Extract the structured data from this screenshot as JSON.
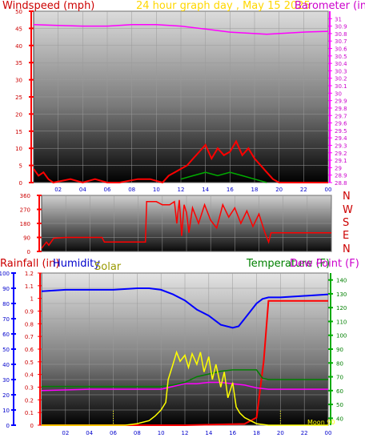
{
  "header": {
    "windspeed_label": "Windspeed (mph)",
    "title": "24 hour graph day , May 15 2025",
    "barometer_label": "Barometer (in)"
  },
  "compass": [
    "N",
    "W",
    "S",
    "E",
    "N"
  ],
  "lower_labels": {
    "rainfall": "Rainfall (in)",
    "humidity": "Humidity",
    "solar": "Solar",
    "temperature": "Temperature (F)",
    "dewpoint": "Dew Point (F)"
  },
  "moon_label": "Moon 90",
  "colors": {
    "windspeed": "#ff0000",
    "gust": "#ff0000",
    "barometer": "#ff00ff",
    "wind_dir": "#ff0000",
    "rain": "#ff0000",
    "humidity": "#0000ff",
    "solar": "#ffff00",
    "temperature": "#ff00ff",
    "dewpoint": "#008000",
    "title": "#ffd700"
  },
  "chart_data": [
    {
      "type": "area",
      "name": "wind-barometer",
      "x_ticks": [
        "02",
        "04",
        "06",
        "08",
        "10",
        "12",
        "14",
        "16",
        "18",
        "20",
        "22",
        "00"
      ],
      "y_left": {
        "label": "Windspeed (mph)",
        "ylim": [
          0,
          50
        ],
        "ticks": [
          0,
          5,
          10,
          15,
          20,
          25,
          30,
          35,
          40,
          45,
          50
        ]
      },
      "y_right": {
        "label": "Barometer (in)",
        "ylim": [
          28.8,
          31.1
        ],
        "ticks": [
          "28.8",
          "28.9",
          "29",
          "29.1",
          "29.2",
          "29.3",
          "29.4",
          "29.5",
          "29.6",
          "29.7",
          "29.8",
          "29.9",
          "30",
          "30.1",
          "30.2",
          "30.3",
          "30.4",
          "30.5",
          "30.6",
          "30.7",
          "30.8",
          "30.9",
          "31"
        ]
      },
      "series": [
        {
          "name": "Barometer",
          "axis": "right",
          "points": [
            [
              0,
              30.92
            ],
            [
              2,
              30.91
            ],
            [
              4,
              30.9
            ],
            [
              6,
              30.9
            ],
            [
              8,
              30.92
            ],
            [
              10,
              30.92
            ],
            [
              12,
              30.9
            ],
            [
              14,
              30.86
            ],
            [
              16,
              30.82
            ],
            [
              18,
              30.8
            ],
            [
              19,
              30.79
            ],
            [
              20,
              30.8
            ],
            [
              22,
              30.82
            ],
            [
              24,
              30.83
            ]
          ]
        },
        {
          "name": "Windspeed",
          "axis": "left",
          "points": [
            [
              0,
              4
            ],
            [
              0.4,
              2
            ],
            [
              0.8,
              3
            ],
            [
              1.2,
              1
            ],
            [
              1.6,
              0
            ],
            [
              3,
              1
            ],
            [
              4,
              0
            ],
            [
              5,
              1
            ],
            [
              6,
              0
            ],
            [
              7,
              0
            ],
            [
              8.5,
              1
            ],
            [
              9.5,
              1
            ],
            [
              10.5,
              0
            ],
            [
              11,
              2
            ],
            [
              11.5,
              3
            ],
            [
              12,
              4
            ],
            [
              12.5,
              5
            ],
            [
              13,
              7
            ],
            [
              13.5,
              9
            ],
            [
              14,
              11
            ],
            [
              14.5,
              7
            ],
            [
              15,
              10
            ],
            [
              15.5,
              8
            ],
            [
              16,
              9
            ],
            [
              16.5,
              12
            ],
            [
              17,
              8
            ],
            [
              17.5,
              10
            ],
            [
              18,
              7
            ],
            [
              18.5,
              5
            ],
            [
              19,
              3
            ],
            [
              19.5,
              1
            ],
            [
              20,
              0
            ],
            [
              24,
              0
            ]
          ]
        },
        {
          "name": "Gust",
          "axis": "left",
          "points": [
            [
              12,
              1
            ],
            [
              13,
              2
            ],
            [
              14,
              3
            ],
            [
              15,
              2
            ],
            [
              16,
              3
            ],
            [
              17,
              2
            ],
            [
              18,
              1
            ],
            [
              19,
              0
            ]
          ]
        }
      ]
    },
    {
      "type": "line",
      "name": "wind-direction",
      "x_ticks": [
        "02",
        "04",
        "06",
        "08",
        "10",
        "12",
        "14",
        "16",
        "18",
        "20",
        "22",
        "00"
      ],
      "ylim": [
        0,
        360
      ],
      "y_ticks": [
        0,
        90,
        180,
        270,
        360
      ],
      "series": [
        {
          "name": "Direction",
          "points": [
            [
              0,
              20
            ],
            [
              0.4,
              60
            ],
            [
              0.6,
              40
            ],
            [
              1,
              85
            ],
            [
              2,
              90
            ],
            [
              4,
              90
            ],
            [
              5,
              90
            ],
            [
              5.2,
              60
            ],
            [
              7,
              60
            ],
            [
              8.6,
              60
            ],
            [
              8.7,
              320
            ],
            [
              9.5,
              320
            ],
            [
              10,
              300
            ],
            [
              10.5,
              300
            ],
            [
              10.6,
              300
            ],
            [
              11,
              320
            ],
            [
              11.2,
              180
            ],
            [
              11.4,
              330
            ],
            [
              11.6,
              100
            ],
            [
              11.8,
              300
            ],
            [
              12,
              250
            ],
            [
              12.2,
              120
            ],
            [
              12.5,
              280
            ],
            [
              13,
              180
            ],
            [
              13.5,
              300
            ],
            [
              14,
              200
            ],
            [
              14.5,
              150
            ],
            [
              15,
              300
            ],
            [
              15.5,
              220
            ],
            [
              16,
              280
            ],
            [
              16.5,
              180
            ],
            [
              17,
              260
            ],
            [
              17.5,
              160
            ],
            [
              18,
              240
            ],
            [
              18.5,
              120
            ],
            [
              18.8,
              60
            ],
            [
              19,
              120
            ],
            [
              19.5,
              120
            ],
            [
              24,
              120
            ]
          ]
        }
      ]
    },
    {
      "type": "line",
      "name": "rain-humidity-temperature",
      "x_ticks": [
        "02",
        "04",
        "06",
        "08",
        "10",
        "12",
        "14",
        "16",
        "18",
        "20",
        "22",
        "00"
      ],
      "y_rain": {
        "label": "Rainfall (in)",
        "ylim": [
          0,
          1.2
        ],
        "ticks": [
          "0",
          "0.1",
          "0.2",
          "0.3",
          "0.4",
          "0.5",
          "0.6",
          "0.7",
          "0.8",
          "0.9",
          "1",
          "1.1",
          "1.2"
        ]
      },
      "y_humidity": {
        "label": "Humidity",
        "ylim": [
          0,
          100
        ],
        "ticks": [
          0,
          10,
          20,
          30,
          40,
          50,
          60,
          70,
          80,
          90,
          100
        ]
      },
      "y_temp": {
        "label": "Temperature (F)",
        "ylim": [
          35,
          145
        ],
        "ticks": [
          40,
          50,
          60,
          70,
          80,
          90,
          100,
          110,
          120,
          130,
          140
        ]
      },
      "series": [
        {
          "name": "Humidity",
          "axis": "humidity",
          "points": [
            [
              0,
              88
            ],
            [
              2,
              89
            ],
            [
              4,
              89
            ],
            [
              6,
              89
            ],
            [
              8,
              90
            ],
            [
              9,
              90
            ],
            [
              10,
              89
            ],
            [
              11,
              86
            ],
            [
              12,
              82
            ],
            [
              13,
              76
            ],
            [
              14,
              72
            ],
            [
              15,
              66
            ],
            [
              16,
              64
            ],
            [
              16.5,
              65
            ],
            [
              17,
              70
            ],
            [
              18,
              80
            ],
            [
              18.5,
              83
            ],
            [
              19,
              84
            ],
            [
              20,
              84
            ],
            [
              22,
              85
            ],
            [
              24,
              86
            ]
          ]
        },
        {
          "name": "Rainfall",
          "axis": "rain",
          "points": [
            [
              0,
              0
            ],
            [
              12,
              0
            ],
            [
              17,
              0.01
            ],
            [
              18,
              0.06
            ],
            [
              18.6,
              0.5
            ],
            [
              19,
              0.98
            ],
            [
              20,
              0.98
            ],
            [
              24,
              0.98
            ]
          ]
        },
        {
          "name": "Temperature",
          "axis": "temp",
          "points": [
            [
              0,
              60
            ],
            [
              4,
              61
            ],
            [
              8,
              61
            ],
            [
              10,
              61
            ],
            [
              11,
              63
            ],
            [
              12,
              65
            ],
            [
              13,
              65
            ],
            [
              14,
              66
            ],
            [
              15,
              66
            ],
            [
              16,
              65
            ],
            [
              17,
              64
            ],
            [
              18,
              62
            ],
            [
              19,
              61
            ],
            [
              20,
              61
            ],
            [
              22,
              61
            ],
            [
              24,
              61
            ]
          ]
        },
        {
          "name": "Dew Point",
          "axis": "temp",
          "points": [
            [
              0,
              63
            ],
            [
              6,
              63
            ],
            [
              10,
              63
            ],
            [
              11,
              64
            ],
            [
              12,
              66
            ],
            [
              13,
              70
            ],
            [
              14,
              72
            ],
            [
              15,
              74
            ],
            [
              16,
              75
            ],
            [
              17,
              75
            ],
            [
              18,
              75
            ],
            [
              18.5,
              69
            ],
            [
              19,
              68
            ],
            [
              20,
              68
            ],
            [
              22,
              68
            ],
            [
              24,
              68
            ]
          ]
        },
        {
          "name": "Solar",
          "axis": "humidity",
          "points": [
            [
              0,
              0
            ],
            [
              6,
              0
            ],
            [
              7,
              0
            ],
            [
              8,
              1
            ],
            [
              9,
              3
            ],
            [
              9.5,
              6
            ],
            [
              10,
              10
            ],
            [
              10.4,
              15
            ],
            [
              10.6,
              30
            ],
            [
              11,
              40
            ],
            [
              11.3,
              48
            ],
            [
              11.6,
              42
            ],
            [
              12,
              46
            ],
            [
              12.3,
              38
            ],
            [
              12.6,
              47
            ],
            [
              13,
              40
            ],
            [
              13.3,
              48
            ],
            [
              13.6,
              35
            ],
            [
              14,
              45
            ],
            [
              14.3,
              30
            ],
            [
              14.6,
              40
            ],
            [
              15,
              25
            ],
            [
              15.3,
              35
            ],
            [
              15.6,
              18
            ],
            [
              16,
              28
            ],
            [
              16.3,
              12
            ],
            [
              16.6,
              8
            ],
            [
              17,
              5
            ],
            [
              17.5,
              3
            ],
            [
              18,
              1
            ],
            [
              19,
              0
            ],
            [
              24,
              0
            ]
          ]
        }
      ]
    }
  ]
}
